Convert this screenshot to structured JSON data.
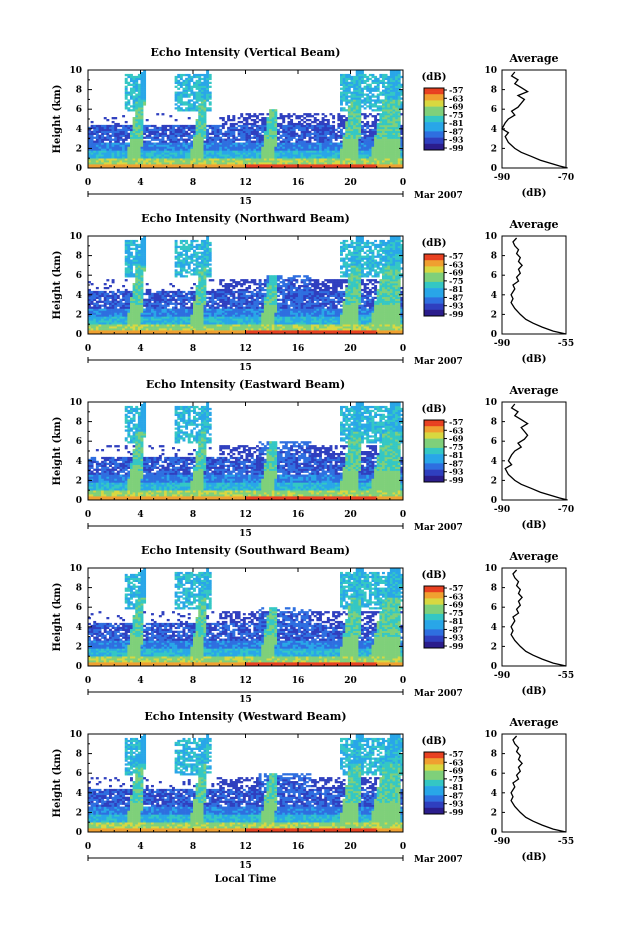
{
  "chart_data": [
    {
      "type": "heatmap",
      "title": "Echo Intensity (Vertical Beam)",
      "ylabel": "Height (km)",
      "ylim": [
        0,
        10
      ],
      "xlim": [
        0,
        24
      ],
      "x_ticks": [
        "0",
        "4",
        "8",
        "12",
        "16",
        "20",
        "0"
      ],
      "y_ticks": [
        "0",
        "2",
        "4",
        "6",
        "8",
        "10"
      ],
      "date_label": "15",
      "month_label": "Mar 2007",
      "colorbar": {
        "unit": "(dB)",
        "ticks": [
          "-57",
          "-63",
          "-69",
          "-75",
          "-81",
          "-87",
          "-93",
          "-99"
        ]
      },
      "profile": {
        "title": "Average",
        "xlabel": "(dB)",
        "xlim": [
          -90,
          -70
        ],
        "x_ticks": [
          "-90",
          "-70"
        ],
        "values": [
          [
            -69.5,
            0
          ],
          [
            -72,
            0.2
          ],
          [
            -75,
            0.5
          ],
          [
            -78,
            0.8
          ],
          [
            -81,
            1.2
          ],
          [
            -84,
            1.6
          ],
          [
            -86,
            2.0
          ],
          [
            -88,
            2.6
          ],
          [
            -89,
            3.2
          ],
          [
            -88,
            3.6
          ],
          [
            -90,
            4.0
          ],
          [
            -89,
            4.6
          ],
          [
            -88,
            5.0
          ],
          [
            -86,
            5.4
          ],
          [
            -87,
            5.8
          ],
          [
            -85,
            6.2
          ],
          [
            -84,
            6.6
          ],
          [
            -83,
            7.0
          ],
          [
            -85,
            7.4
          ],
          [
            -82,
            7.8
          ],
          [
            -84,
            8.2
          ],
          [
            -86,
            8.6
          ],
          [
            -85,
            9.0
          ],
          [
            -87,
            9.4
          ],
          [
            -86,
            9.8
          ]
        ]
      }
    },
    {
      "type": "heatmap",
      "title": "Echo Intensity (Northward Beam)",
      "ylabel": "Height (km)",
      "ylim": [
        0,
        10
      ],
      "xlim": [
        0,
        24
      ],
      "x_ticks": [
        "0",
        "4",
        "8",
        "12",
        "16",
        "20",
        "0"
      ],
      "y_ticks": [
        "0",
        "2",
        "4",
        "6",
        "8",
        "10"
      ],
      "date_label": "15",
      "month_label": "Mar 2007",
      "colorbar": {
        "unit": "(dB)",
        "ticks": [
          "-57",
          "-63",
          "-69",
          "-75",
          "-81",
          "-87",
          "-93",
          "-99"
        ]
      },
      "profile": {
        "title": "Average",
        "xlabel": "(dB)",
        "xlim": [
          -90,
          -55
        ],
        "x_ticks": [
          "-90",
          "-55"
        ],
        "values": [
          [
            -55,
            0
          ],
          [
            -62,
            0.3
          ],
          [
            -68,
            0.7
          ],
          [
            -73,
            1.1
          ],
          [
            -77,
            1.5
          ],
          [
            -80,
            2.0
          ],
          [
            -83,
            2.6
          ],
          [
            -85,
            3.2
          ],
          [
            -84,
            3.6
          ],
          [
            -85,
            4.0
          ],
          [
            -83,
            4.6
          ],
          [
            -84,
            5.0
          ],
          [
            -81,
            5.4
          ],
          [
            -82,
            5.8
          ],
          [
            -80,
            6.2
          ],
          [
            -81,
            6.6
          ],
          [
            -79,
            7.0
          ],
          [
            -81,
            7.4
          ],
          [
            -80,
            7.8
          ],
          [
            -82,
            8.2
          ],
          [
            -81,
            8.6
          ],
          [
            -83,
            9.0
          ],
          [
            -84,
            9.4
          ],
          [
            -82,
            9.8
          ]
        ]
      }
    },
    {
      "type": "heatmap",
      "title": "Echo Intensity (Eastward Beam)",
      "ylabel": "Height (km)",
      "ylim": [
        0,
        10
      ],
      "xlim": [
        0,
        24
      ],
      "x_ticks": [
        "0",
        "4",
        "8",
        "12",
        "16",
        "20",
        "0"
      ],
      "y_ticks": [
        "0",
        "2",
        "4",
        "6",
        "8",
        "10"
      ],
      "date_label": "15",
      "month_label": "Mar 2007",
      "colorbar": {
        "unit": "(dB)",
        "ticks": [
          "-57",
          "-63",
          "-69",
          "-75",
          "-81",
          "-87",
          "-93",
          "-99"
        ]
      },
      "profile": {
        "title": "Average",
        "xlabel": "(dB)",
        "xlim": [
          -90,
          -70
        ],
        "x_ticks": [
          "-90",
          "-70"
        ],
        "values": [
          [
            -69.5,
            0
          ],
          [
            -72,
            0.2
          ],
          [
            -75,
            0.5
          ],
          [
            -78,
            0.8
          ],
          [
            -81,
            1.2
          ],
          [
            -84,
            1.6
          ],
          [
            -86,
            2.0
          ],
          [
            -88,
            2.6
          ],
          [
            -89,
            3.2
          ],
          [
            -87,
            3.6
          ],
          [
            -88,
            4.0
          ],
          [
            -87,
            4.6
          ],
          [
            -86,
            5.0
          ],
          [
            -84,
            5.4
          ],
          [
            -85,
            5.8
          ],
          [
            -83,
            6.2
          ],
          [
            -82,
            6.6
          ],
          [
            -83,
            7.0
          ],
          [
            -84,
            7.4
          ],
          [
            -82,
            7.8
          ],
          [
            -84,
            8.2
          ],
          [
            -86,
            8.6
          ],
          [
            -85,
            9.0
          ],
          [
            -87,
            9.4
          ],
          [
            -86,
            9.8
          ]
        ]
      }
    },
    {
      "type": "heatmap",
      "title": "Echo Intensity (Southward Beam)",
      "ylabel": "Height (km)",
      "ylim": [
        0,
        10
      ],
      "xlim": [
        0,
        24
      ],
      "x_ticks": [
        "0",
        "4",
        "8",
        "12",
        "16",
        "20",
        "0"
      ],
      "y_ticks": [
        "0",
        "2",
        "4",
        "6",
        "8",
        "10"
      ],
      "date_label": "15",
      "month_label": "Mar 2007",
      "colorbar": {
        "unit": "(dB)",
        "ticks": [
          "-57",
          "-63",
          "-69",
          "-75",
          "-81",
          "-87",
          "-93",
          "-99"
        ]
      },
      "profile": {
        "title": "Average",
        "xlabel": "(dB)",
        "xlim": [
          -90,
          -55
        ],
        "x_ticks": [
          "-90",
          "-55"
        ],
        "values": [
          [
            -55,
            0
          ],
          [
            -62,
            0.3
          ],
          [
            -68,
            0.7
          ],
          [
            -73,
            1.1
          ],
          [
            -77,
            1.5
          ],
          [
            -80,
            2.0
          ],
          [
            -83,
            2.6
          ],
          [
            -85,
            3.2
          ],
          [
            -84,
            3.6
          ],
          [
            -85,
            4.0
          ],
          [
            -83,
            4.6
          ],
          [
            -84,
            5.0
          ],
          [
            -81,
            5.4
          ],
          [
            -82,
            5.8
          ],
          [
            -80,
            6.2
          ],
          [
            -81,
            6.6
          ],
          [
            -79,
            7.0
          ],
          [
            -81,
            7.4
          ],
          [
            -80,
            7.8
          ],
          [
            -82,
            8.2
          ],
          [
            -81,
            8.6
          ],
          [
            -83,
            9.0
          ],
          [
            -84,
            9.4
          ],
          [
            -82,
            9.8
          ]
        ]
      }
    },
    {
      "type": "heatmap",
      "title": "Echo Intensity (Westward Beam)",
      "ylabel": "Height (km)",
      "ylim": [
        0,
        10
      ],
      "xlim": [
        0,
        24
      ],
      "x_ticks": [
        "0",
        "4",
        "8",
        "12",
        "16",
        "20",
        "0"
      ],
      "y_ticks": [
        "0",
        "2",
        "4",
        "6",
        "8",
        "10"
      ],
      "date_label": "15",
      "month_label": "Mar 2007",
      "xlabel": "Local Time",
      "colorbar": {
        "unit": "(dB)",
        "ticks": [
          "-57",
          "-63",
          "-69",
          "-75",
          "-81",
          "-87",
          "-93",
          "-99"
        ]
      },
      "profile": {
        "title": "Average",
        "xlabel": "(dB)",
        "xlim": [
          -90,
          -55
        ],
        "x_ticks": [
          "-90",
          "-55"
        ],
        "values": [
          [
            -55,
            0
          ],
          [
            -62,
            0.3
          ],
          [
            -68,
            0.7
          ],
          [
            -73,
            1.1
          ],
          [
            -77,
            1.5
          ],
          [
            -80,
            2.0
          ],
          [
            -83,
            2.6
          ],
          [
            -85,
            3.2
          ],
          [
            -84,
            3.6
          ],
          [
            -85,
            4.0
          ],
          [
            -83,
            4.6
          ],
          [
            -84,
            5.0
          ],
          [
            -81,
            5.4
          ],
          [
            -82,
            5.8
          ],
          [
            -80,
            6.2
          ],
          [
            -81,
            6.6
          ],
          [
            -79,
            7.0
          ],
          [
            -81,
            7.4
          ],
          [
            -80,
            7.8
          ],
          [
            -82,
            8.2
          ],
          [
            -81,
            8.6
          ],
          [
            -83,
            9.0
          ],
          [
            -84,
            9.4
          ],
          [
            -82,
            9.8
          ]
        ]
      }
    }
  ],
  "colormap": [
    "#2b1d8c",
    "#2f3fbf",
    "#2e6fe0",
    "#29a6e8",
    "#34c7c4",
    "#7fd07a",
    "#d8d840",
    "#f0a030",
    "#e84020"
  ]
}
